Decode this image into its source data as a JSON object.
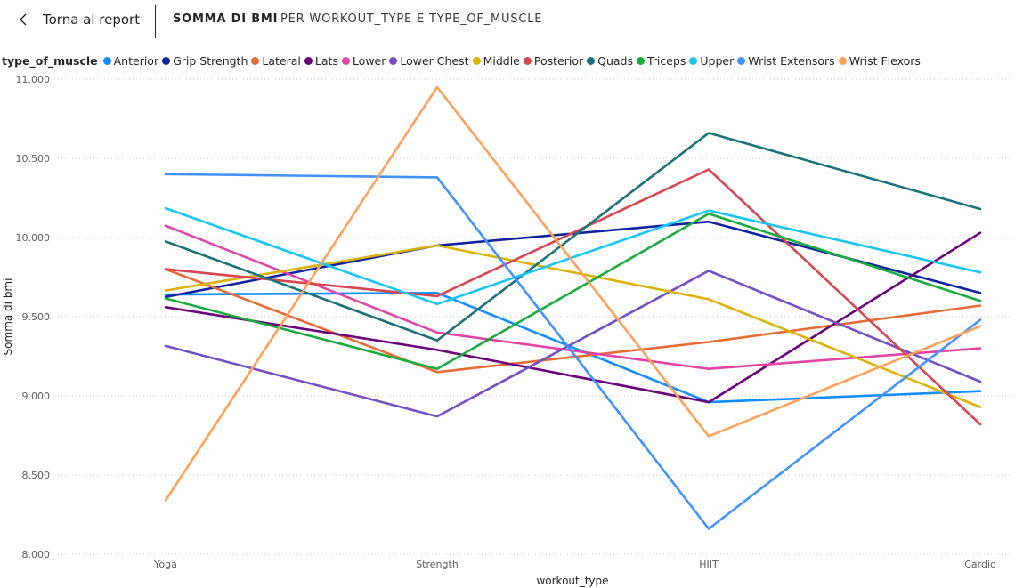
{
  "header": {
    "back_label": "Torna al report",
    "title": "SOMMA DI BMI",
    "subtitle": "PER WORKOUT_TYPE E TYPE_OF_MUSCLE"
  },
  "legend": {
    "title": "type_of_muscle"
  },
  "chart_data": {
    "type": "line",
    "xlabel": "workout_type",
    "ylabel": "Somma di bmi",
    "categories": [
      "Yoga",
      "Strength",
      "HIIT",
      "Cardio"
    ],
    "ylim": [
      8000,
      11000
    ],
    "yticks": [
      8000,
      8500,
      9000,
      9500,
      10000,
      10500,
      11000
    ],
    "ytick_labels": [
      "8.000",
      "8.500",
      "9.000",
      "9.500",
      "10.000",
      "10.500",
      "11.000"
    ],
    "grid": true,
    "legend_position": "top-left",
    "series": [
      {
        "name": "Anterior",
        "color": "#118DFF",
        "values": [
          9640,
          9650,
          8960,
          9030
        ]
      },
      {
        "name": "Grip Strength",
        "color": "#12239E",
        "values": [
          9625,
          9950,
          10100,
          9650
        ]
      },
      {
        "name": "Lateral",
        "color": "#E66C37",
        "values": [
          9800,
          9150,
          9340,
          9570
        ]
      },
      {
        "name": "Lats",
        "color": "#6B007B",
        "values": [
          9560,
          9290,
          8960,
          10030
        ]
      },
      {
        "name": "Lower",
        "color": "#E044A7",
        "values": [
          10075,
          9400,
          9170,
          9300
        ]
      },
      {
        "name": "Lower Chest",
        "color": "#744EC2",
        "values": [
          9315,
          8870,
          9790,
          9090
        ]
      },
      {
        "name": "Middle",
        "color": "#D9B300",
        "values": [
          9665,
          9950,
          9610,
          8930
        ]
      },
      {
        "name": "Posterior",
        "color": "#D64550",
        "values": [
          9800,
          9630,
          10430,
          8820
        ]
      },
      {
        "name": "Quads",
        "color": "#197278",
        "values": [
          9975,
          9350,
          10660,
          10180
        ]
      },
      {
        "name": "Triceps",
        "color": "#1AAB40",
        "values": [
          9615,
          9170,
          10150,
          9600
        ]
      },
      {
        "name": "Upper",
        "color": "#15C6F4",
        "values": [
          10185,
          9580,
          10170,
          9780
        ]
      },
      {
        "name": "Wrist Extensors",
        "color": "#4092FF",
        "values": [
          10400,
          10380,
          8160,
          9480
        ]
      },
      {
        "name": "Wrist Flexors",
        "color": "#FFA058",
        "values": [
          8340,
          10950,
          8745,
          9440
        ]
      }
    ]
  }
}
